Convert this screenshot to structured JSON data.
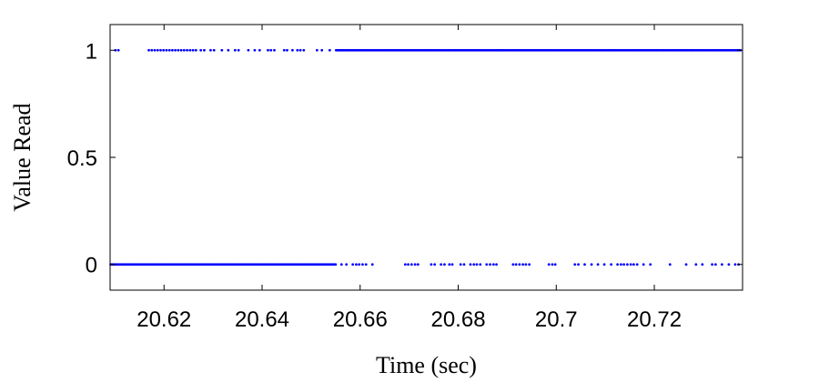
{
  "chart_data": {
    "type": "scatter",
    "title": "",
    "xlabel": "Time (sec)",
    "ylabel": "Value Read",
    "xlim": [
      20.609,
      20.738
    ],
    "ylim": [
      -0.12,
      1.12
    ],
    "x_ticks": [
      20.62,
      20.64,
      20.66,
      20.68,
      20.7,
      20.72
    ],
    "x_tick_labels": [
      "20.62",
      "20.64",
      "20.66",
      "20.68",
      "20.7",
      "20.72"
    ],
    "y_ticks": [
      0,
      0.5,
      1
    ],
    "y_tick_labels": [
      "0",
      "0.5",
      "1"
    ],
    "grid": false,
    "legend": "none",
    "marker_color": "#0000ff",
    "series": [
      {
        "y": 1,
        "segments": [
          [
            20.6101,
            20.6112,
            0.0006
          ],
          [
            20.6169,
            20.6265,
            0.0006
          ],
          [
            20.6551,
            20.7376,
            0.0003
          ]
        ],
        "points": [
          20.6275,
          20.6282,
          20.6295,
          20.6302,
          20.6318,
          20.6331,
          20.6345,
          20.6352,
          20.6372,
          20.6385,
          20.6395,
          20.6412,
          20.6418,
          20.6425,
          20.6445,
          20.6451,
          20.6462,
          20.6472,
          20.6478,
          20.6485,
          20.6512,
          20.6522,
          20.6538
        ]
      },
      {
        "y": 0,
        "segments": [
          [
            20.6091,
            20.6551,
            0.0003
          ]
        ],
        "points": [
          20.6562,
          20.6572,
          20.6585,
          20.6592,
          20.6598,
          20.6605,
          20.6612,
          20.6625,
          20.6692,
          20.6698,
          20.6705,
          20.6712,
          20.6718,
          20.6745,
          20.6752,
          20.6765,
          20.6772,
          20.6782,
          20.6788,
          20.6805,
          20.6812,
          20.6825,
          20.6832,
          20.6838,
          20.6845,
          20.6858,
          20.6865,
          20.6872,
          20.6878,
          20.6912,
          20.6918,
          20.6925,
          20.6932,
          20.6938,
          20.6945,
          20.6985,
          20.6992,
          20.6998,
          20.7038,
          20.7045,
          20.7058,
          20.7072,
          20.7085,
          20.7098,
          20.7112,
          20.7125,
          20.7132,
          20.7138,
          20.7145,
          20.7152,
          20.7158,
          20.7165,
          20.7178,
          20.7192,
          20.7232,
          20.7265,
          20.7285,
          20.7298,
          20.7318,
          20.7325,
          20.7338,
          20.7352,
          20.7365,
          20.7372
        ]
      }
    ]
  }
}
